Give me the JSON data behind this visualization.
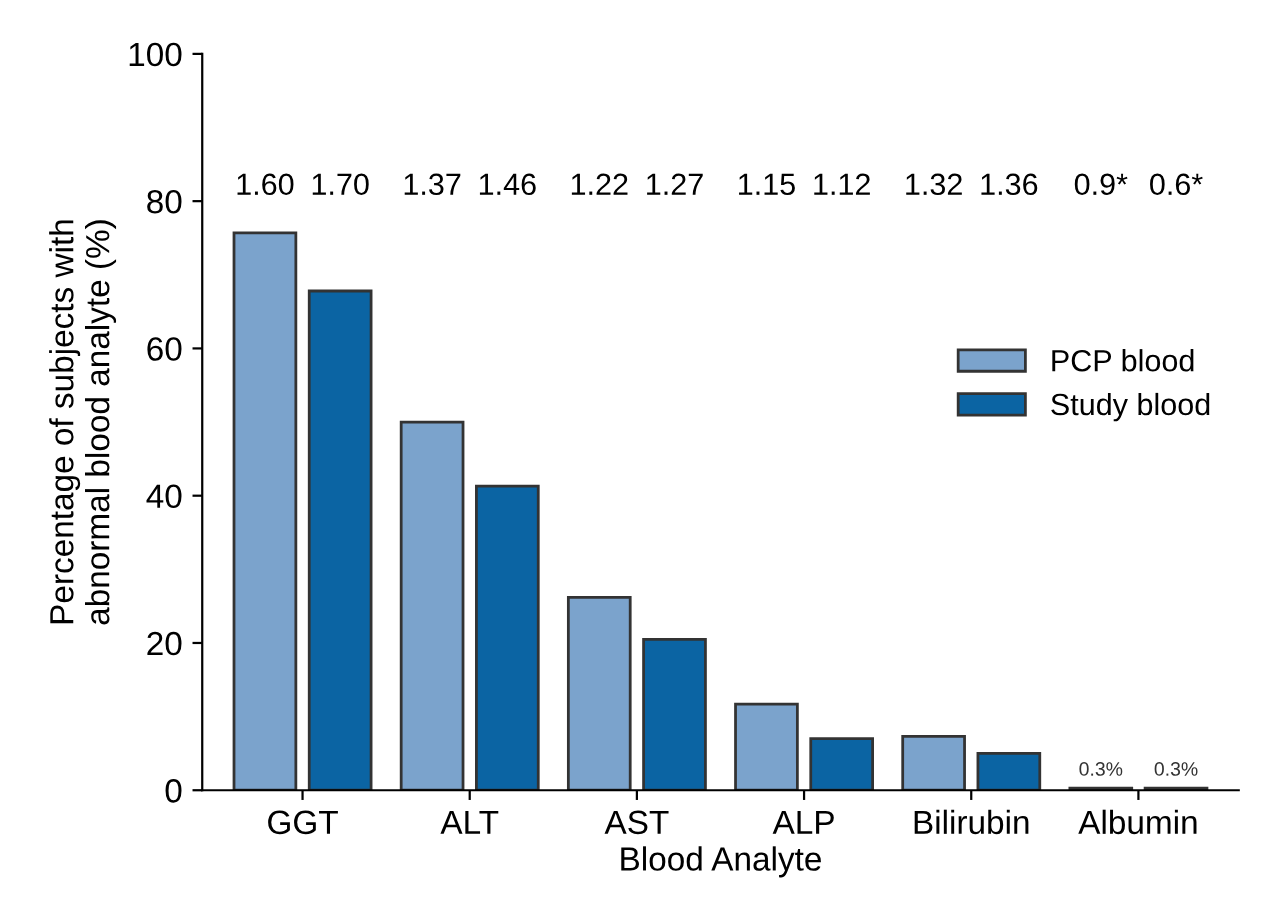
{
  "chart_data": {
    "type": "bar",
    "xlabel": "Blood Analyte",
    "ylabel": "Percentage of subjects with\nabnormal blood analyte (%)",
    "categories": [
      "GGT",
      "ALT",
      "AST",
      "ALP",
      "Bilirubin",
      "Albumin"
    ],
    "series": [
      {
        "name": "PCP blood",
        "color": "#7ba3cc",
        "values": [
          75.7,
          50.0,
          26.2,
          11.7,
          7.3,
          0.3
        ],
        "value_labels": [
          null,
          null,
          null,
          null,
          null,
          "0.3%"
        ]
      },
      {
        "name": "Study blood",
        "color": "#0b64a3",
        "values": [
          67.8,
          41.3,
          20.5,
          7.0,
          5.0,
          0.3
        ],
        "value_labels": [
          null,
          null,
          null,
          null,
          null,
          "0.3%"
        ]
      }
    ],
    "annotations": [
      "1.60",
      "1.70",
      "1.37",
      "1.46",
      "1.22",
      "1.27",
      "1.15",
      "1.12",
      "1.32",
      "1.36",
      "0.9*",
      "0.6*"
    ],
    "ylim": [
      0,
      100
    ],
    "yticks": [
      0,
      20,
      40,
      60,
      80,
      100
    ],
    "grid": false,
    "legend": "right"
  }
}
